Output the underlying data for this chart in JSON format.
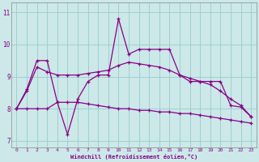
{
  "xlabel": "Windchill (Refroidissement éolien,°C)",
  "bg_color": "#cce8e8",
  "line_color": "#880088",
  "grid_color": "#99cccc",
  "x_values": [
    0,
    1,
    2,
    3,
    4,
    5,
    6,
    7,
    8,
    9,
    10,
    11,
    12,
    13,
    14,
    15,
    16,
    17,
    18,
    19,
    20,
    21,
    22,
    23
  ],
  "line1": [
    8.0,
    8.6,
    9.5,
    9.5,
    8.2,
    7.2,
    8.3,
    8.85,
    9.05,
    9.05,
    10.8,
    9.7,
    9.85,
    9.85,
    9.85,
    9.85,
    9.05,
    8.85,
    8.85,
    8.85,
    8.85,
    8.1,
    8.05,
    7.75
  ],
  "line2": [
    8.0,
    8.55,
    9.3,
    9.15,
    9.05,
    9.05,
    9.05,
    9.1,
    9.15,
    9.2,
    9.35,
    9.45,
    9.4,
    9.35,
    9.3,
    9.2,
    9.05,
    8.95,
    8.85,
    8.75,
    8.55,
    8.3,
    8.1,
    7.75
  ],
  "line3": [
    8.0,
    8.0,
    8.0,
    8.0,
    8.2,
    8.2,
    8.2,
    8.15,
    8.1,
    8.05,
    8.0,
    8.0,
    7.95,
    7.95,
    7.9,
    7.9,
    7.85,
    7.85,
    7.8,
    7.75,
    7.7,
    7.65,
    7.6,
    7.55
  ],
  "ylim": [
    6.8,
    11.3
  ],
  "yticks": [
    7,
    8,
    9,
    10,
    11
  ],
  "xticks": [
    0,
    1,
    2,
    3,
    4,
    5,
    6,
    7,
    8,
    9,
    10,
    11,
    12,
    13,
    14,
    15,
    16,
    17,
    18,
    19,
    20,
    21,
    22,
    23
  ]
}
